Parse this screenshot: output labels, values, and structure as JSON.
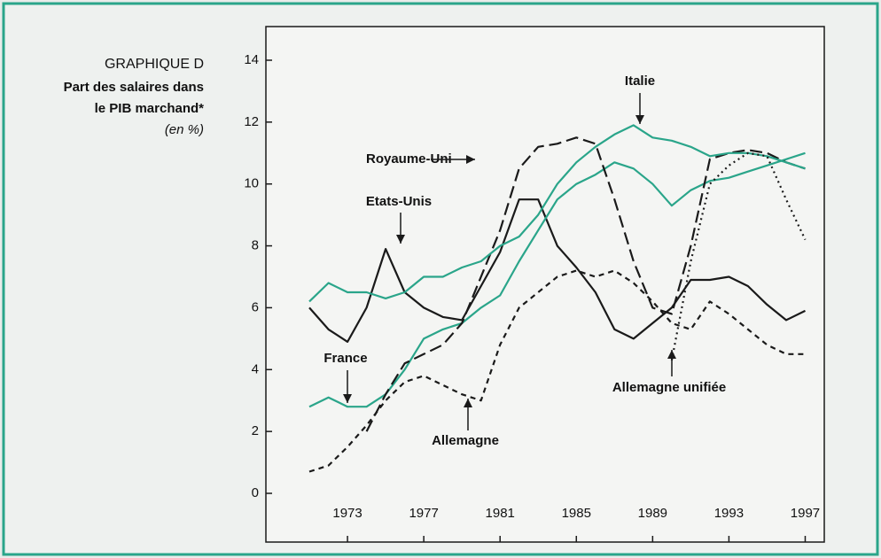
{
  "chart_data": {
    "type": "line",
    "title": "GRAPHIQUE D",
    "subtitle": [
      "Part des salaires dans",
      "le PIB marchand*"
    ],
    "unit_note": "(en %)",
    "x": [
      1971,
      1972,
      1973,
      1974,
      1975,
      1976,
      1977,
      1978,
      1979,
      1980,
      1981,
      1982,
      1983,
      1984,
      1985,
      1986,
      1987,
      1988,
      1989,
      1990,
      1991,
      1992,
      1993,
      1994,
      1995,
      1996,
      1997
    ],
    "xlim": [
      1969,
      1998
    ],
    "xticks": [
      1973,
      1977,
      1981,
      1985,
      1989,
      1993,
      1997
    ],
    "ylim": [
      0,
      14
    ],
    "yticks": [
      0,
      2,
      4,
      6,
      8,
      10,
      12,
      14
    ],
    "series": [
      {
        "name": "Etats-Unis",
        "color": "#1a1a1a",
        "style": "solid",
        "values": [
          6.0,
          5.3,
          4.9,
          6.0,
          7.9,
          6.5,
          6.0,
          5.7,
          5.6,
          6.7,
          7.8,
          9.5,
          9.5,
          8.0,
          7.3,
          6.5,
          5.3,
          5.0,
          5.5,
          6.0,
          6.9,
          6.9,
          7.0,
          6.7,
          6.1,
          5.6,
          5.9
        ]
      },
      {
        "name": "France",
        "color": "#2aa58a",
        "style": "solid",
        "values": [
          2.8,
          3.1,
          2.8,
          2.8,
          3.2,
          4.0,
          5.0,
          5.3,
          5.5,
          6.0,
          6.4,
          7.5,
          8.5,
          9.5,
          10.0,
          10.3,
          10.7,
          10.5,
          10.0,
          9.3,
          9.8,
          10.1,
          10.2,
          10.4,
          10.6,
          10.8,
          11.0
        ]
      },
      {
        "name": "Royaume-Uni",
        "color": "#1a1a1a",
        "style": "dashed",
        "values": [
          null,
          null,
          null,
          2.0,
          3.2,
          4.2,
          4.5,
          4.8,
          5.5,
          7.0,
          8.5,
          10.5,
          11.2,
          11.3,
          11.5,
          11.3,
          9.5,
          7.5,
          6.0,
          5.8,
          8.0,
          10.8,
          11.0,
          11.1,
          11.0,
          10.7,
          10.5
        ]
      },
      {
        "name": "Allemagne",
        "color": "#1a1a1a",
        "style": "shortdash",
        "values": [
          0.7,
          0.9,
          1.5,
          2.2,
          3.0,
          3.6,
          3.8,
          3.5,
          3.2,
          3.0,
          4.8,
          6.0,
          6.5,
          7.0,
          7.2,
          7.0,
          7.2,
          6.8,
          6.2,
          5.5,
          5.3,
          6.2,
          5.8,
          5.3,
          4.8,
          4.5,
          4.5
        ]
      },
      {
        "name": "Italie",
        "color": "#2aa58a",
        "style": "solid",
        "values": [
          6.2,
          6.8,
          6.5,
          6.5,
          6.3,
          6.5,
          7.0,
          7.0,
          7.3,
          7.5,
          8.0,
          8.3,
          9.0,
          10.0,
          10.7,
          11.2,
          11.6,
          11.9,
          11.5,
          11.4,
          11.2,
          10.9,
          11.0,
          11.0,
          10.9,
          10.7,
          10.5
        ]
      },
      {
        "name": "Allemagne unifiée",
        "color": "#1a1a1a",
        "style": "dotted",
        "values": [
          null,
          null,
          null,
          null,
          null,
          null,
          null,
          null,
          null,
          null,
          null,
          null,
          null,
          null,
          null,
          null,
          null,
          null,
          null,
          4.3,
          7.5,
          10.0,
          10.6,
          11.0,
          10.9,
          9.5,
          8.2
        ]
      }
    ]
  }
}
